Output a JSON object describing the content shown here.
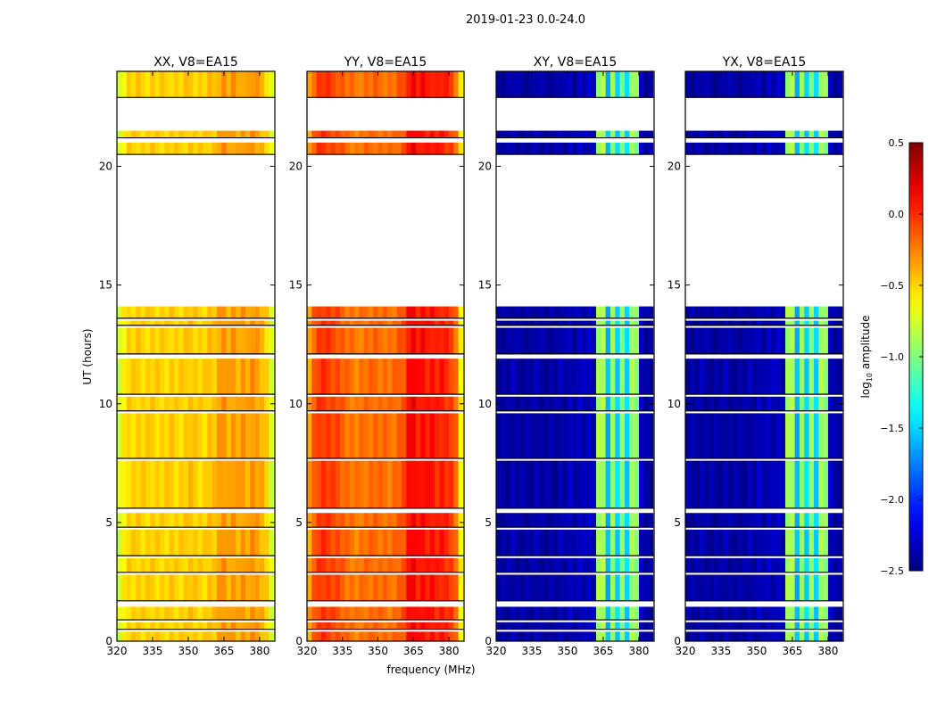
{
  "chart_data": {
    "type": "heatmap",
    "suptitle": "2019-01-23 0.0-24.0",
    "xlabel": "frequency (MHz)",
    "ylabel": "UT (hours)",
    "xlim": [
      320,
      386.4
    ],
    "ylim": [
      0,
      24
    ],
    "xticks": [
      "320",
      "335",
      "350",
      "365",
      "380"
    ],
    "xtick_values": [
      320,
      335,
      350,
      365,
      380
    ],
    "yticks": [
      "0",
      "5",
      "10",
      "15",
      "20"
    ],
    "ytick_values": [
      0,
      5,
      10,
      15,
      20
    ],
    "freq_bin_start": 320,
    "freq_bin_width": 2,
    "time_segments": [
      [
        0,
        0.4
      ],
      [
        0.5,
        0.8
      ],
      [
        0.9,
        1.45
      ],
      [
        1.7,
        2.8
      ],
      [
        2.9,
        3.5
      ],
      [
        3.6,
        4.7
      ],
      [
        4.8,
        5.4
      ],
      [
        5.6,
        7.6
      ],
      [
        7.7,
        9.6
      ],
      [
        9.7,
        10.3
      ],
      [
        10.4,
        11.9
      ],
      [
        12.1,
        13.2
      ],
      [
        13.3,
        13.5
      ],
      [
        13.6,
        14.1
      ],
      [
        20.5,
        21.0
      ],
      [
        21.2,
        21.5
      ],
      [
        22.9,
        24.0
      ]
    ],
    "panels": [
      {
        "title": "XX, V8=EA15",
        "show_ylabel": true,
        "profile": [
          -0.75,
          -0.6,
          -0.5,
          -0.5,
          -0.48,
          -0.5,
          -0.5,
          -0.48,
          -0.5,
          -0.5,
          -0.5,
          -0.48,
          -0.5,
          -0.5,
          -0.48,
          -0.45,
          -0.48,
          -0.5,
          -0.5,
          -0.45,
          -0.45,
          -0.35,
          -0.3,
          -0.38,
          -0.32,
          -0.38,
          -0.32,
          -0.38,
          -0.3,
          -0.35,
          -0.4,
          -0.5,
          -0.75
        ]
      },
      {
        "title": "YY, V8=EA15",
        "show_ylabel": false,
        "profile": [
          -0.35,
          -0.15,
          -0.05,
          -0.02,
          -0.05,
          -0.08,
          -0.1,
          -0.15,
          -0.2,
          -0.22,
          -0.25,
          -0.22,
          -0.2,
          -0.2,
          -0.18,
          -0.2,
          -0.2,
          -0.22,
          -0.2,
          -0.15,
          -0.1,
          0.1,
          0.15,
          0.05,
          0.1,
          0.05,
          0.08,
          0.02,
          0.05,
          0.0,
          -0.05,
          -0.2,
          -0.6
        ]
      },
      {
        "title": "XY, V8=EA15",
        "show_ylabel": false,
        "profile": [
          -2.4,
          -2.4,
          -2.4,
          -2.35,
          -2.4,
          -2.4,
          -2.4,
          -2.4,
          -2.35,
          -2.4,
          -2.4,
          -2.4,
          -2.4,
          -2.35,
          -2.4,
          -2.3,
          -2.4,
          -2.3,
          -2.35,
          -2.3,
          -2.35,
          -0.9,
          -0.85,
          -1.6,
          -0.95,
          -1.5,
          -0.95,
          -1.5,
          -0.9,
          -0.95,
          -2.3,
          -2.4,
          -2.4
        ]
      },
      {
        "title": "YX, V8=EA15",
        "show_ylabel": false,
        "profile": [
          -2.4,
          -2.4,
          -2.4,
          -2.35,
          -2.4,
          -2.4,
          -2.4,
          -2.4,
          -2.35,
          -2.4,
          -2.4,
          -2.4,
          -2.4,
          -2.35,
          -2.4,
          -2.3,
          -2.4,
          -2.3,
          -2.35,
          -2.3,
          -2.35,
          -0.9,
          -0.85,
          -1.6,
          -0.95,
          -1.5,
          -0.95,
          -1.5,
          -0.9,
          -0.95,
          -2.3,
          -2.4,
          -2.4
        ]
      }
    ],
    "colorbar": {
      "label": "log10 amplitude",
      "label_base": "log",
      "label_sub": "10",
      "label_rest": " amplitude",
      "colormap": "jet",
      "range": [
        -2.5,
        0.5
      ],
      "ticks": [
        "0.5",
        "0.0",
        "−0.5",
        "−1.0",
        "−1.5",
        "−2.0",
        "−2.5"
      ],
      "tick_values": [
        0.5,
        0.0,
        -0.5,
        -1.0,
        -1.5,
        -2.0,
        -2.5
      ]
    }
  }
}
